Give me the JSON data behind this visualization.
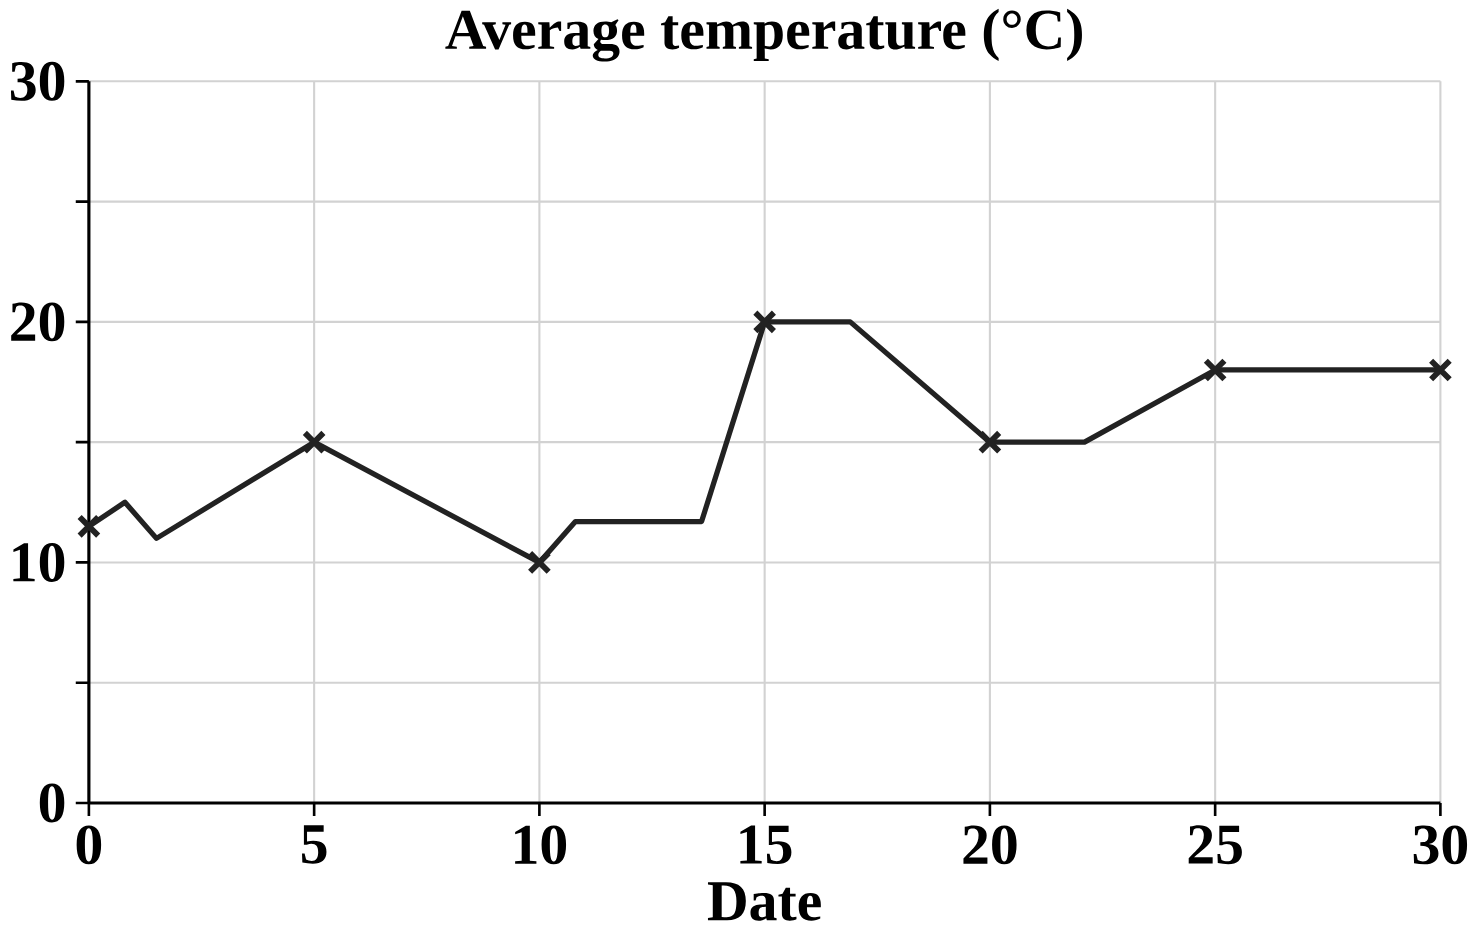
{
  "chart_data": {
    "type": "line",
    "title": "Average temperature (°C)",
    "xlabel": "Date",
    "xlim": [
      0,
      30
    ],
    "xticks": [
      0,
      5,
      10,
      15,
      20,
      25,
      30
    ],
    "ylim": [
      0,
      30
    ],
    "yticks": [
      0,
      {
        "value": 5,
        "label": null
      },
      10,
      {
        "value": 15,
        "label": null
      },
      20,
      {
        "value": 25,
        "label": null
      },
      30
    ],
    "grid": true,
    "series": [
      {
        "color": "#222222",
        "marker": "none",
        "line_style": "solid",
        "x": [
          0,
          0.8,
          1.5,
          5,
          10,
          10.8,
          13.6,
          15,
          16.9,
          20,
          22.1,
          25,
          30
        ],
        "values": [
          11.5,
          12.5,
          11,
          15,
          10,
          11.7,
          11.7,
          20,
          20,
          15,
          15,
          18,
          18
        ]
      },
      {
        "type": "scatter",
        "color": "#222222",
        "marker": "cross",
        "x": [
          0,
          5,
          10,
          15,
          20,
          25,
          30
        ],
        "values": [
          11.5,
          15,
          10,
          20,
          15,
          18,
          18
        ]
      }
    ]
  }
}
